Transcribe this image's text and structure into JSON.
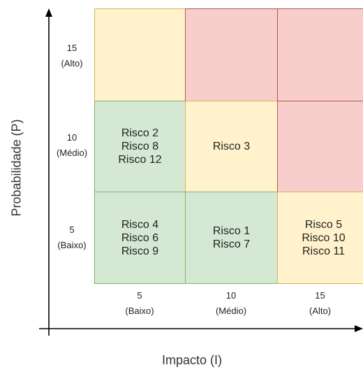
{
  "y_axis": {
    "title": "Probabilidade (P)",
    "ticks": [
      {
        "value": "15",
        "label": "(Alto)"
      },
      {
        "value": "10",
        "label": "(Médio)"
      },
      {
        "value": "5",
        "label": "(Baixo)"
      }
    ]
  },
  "x_axis": {
    "title": "Impacto (I)",
    "ticks": [
      {
        "value": "5",
        "label": "(Baixo)"
      },
      {
        "value": "10",
        "label": "(Médio)"
      },
      {
        "value": "15",
        "label": "(Alto)"
      }
    ]
  },
  "colors": {
    "low": "#d5e8d4",
    "medium": "#fff2cc",
    "high": "#f8cecc",
    "axis": "#000000"
  },
  "matrix": {
    "row_high": {
      "impact_low": {
        "level": "medium",
        "items": []
      },
      "impact_medium": {
        "level": "high",
        "items": []
      },
      "impact_high": {
        "level": "high",
        "items": []
      }
    },
    "row_medium": {
      "impact_low": {
        "level": "low",
        "items": [
          "Risco 2",
          "Risco 8",
          "Risco 12"
        ]
      },
      "impact_medium": {
        "level": "medium",
        "items": [
          "Risco 3"
        ]
      },
      "impact_high": {
        "level": "high",
        "items": []
      }
    },
    "row_low": {
      "impact_low": {
        "level": "low",
        "items": [
          "Risco 4",
          "Risco 6",
          "Risco 9"
        ]
      },
      "impact_medium": {
        "level": "low",
        "items": [
          "Risco 1",
          "Risco 7"
        ]
      },
      "impact_high": {
        "level": "medium",
        "items": [
          "Risco 5",
          "Risco 10",
          "Risco 11"
        ]
      }
    }
  }
}
